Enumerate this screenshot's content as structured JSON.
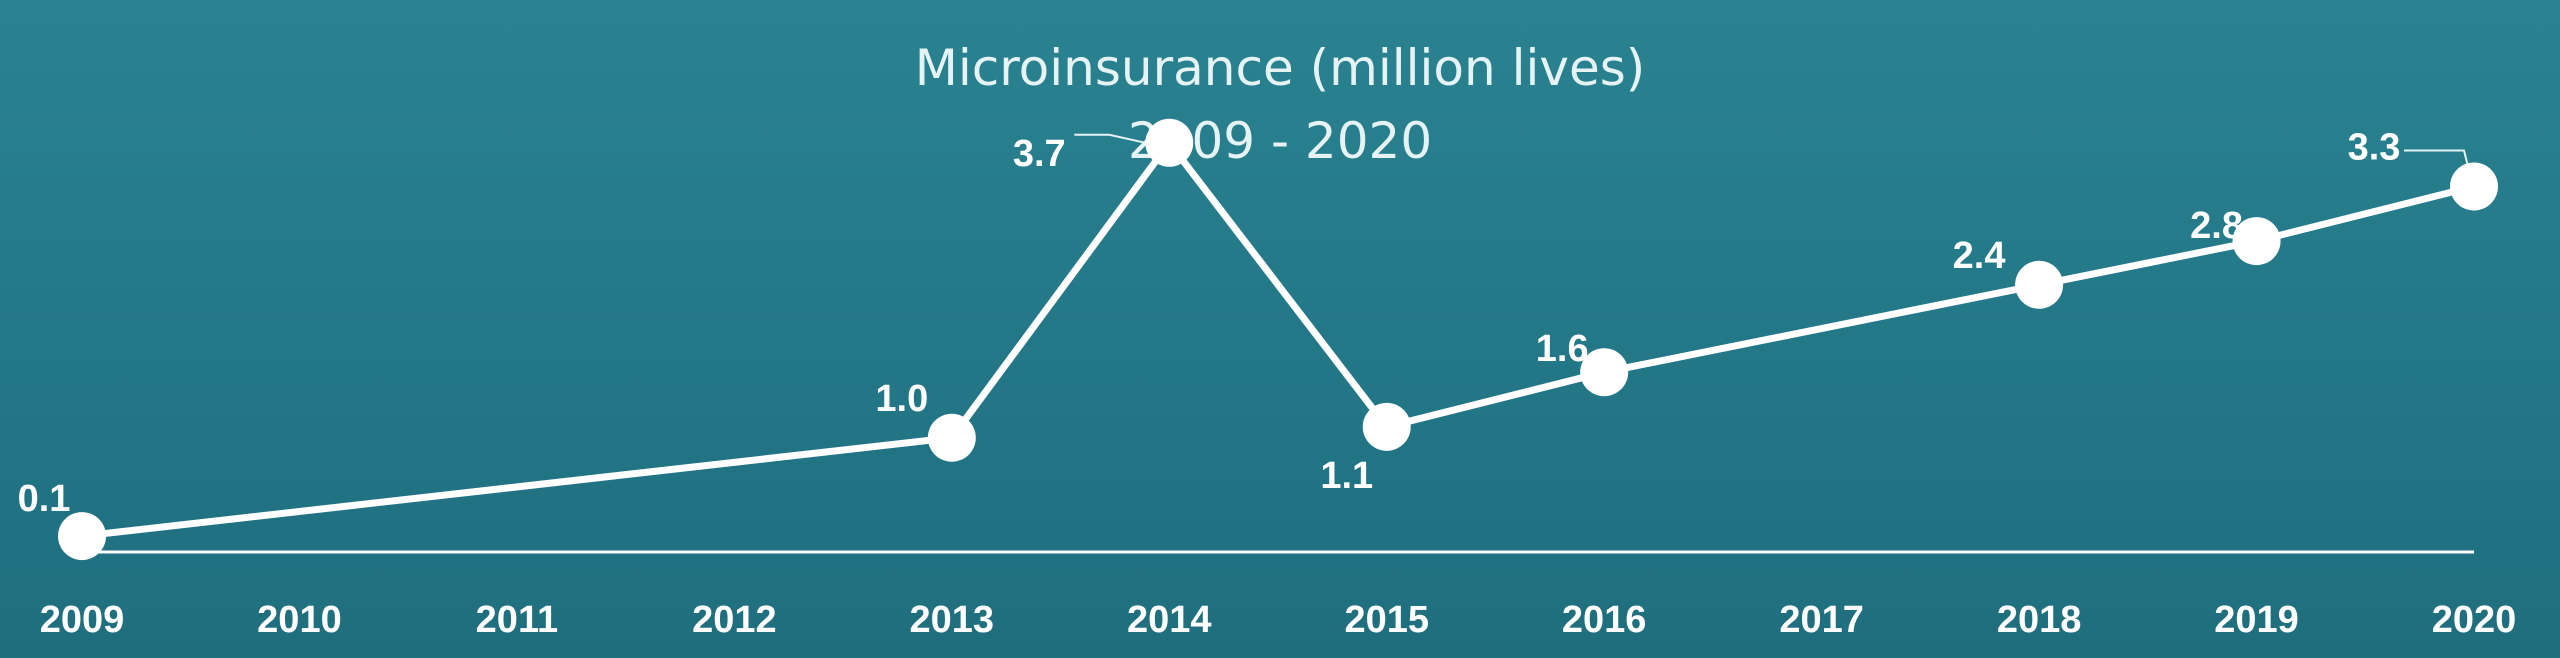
{
  "chart_data": {
    "type": "line",
    "title": "Microinsurance (million lives)",
    "subtitle": "2009 - 2020",
    "categories": [
      "2009",
      "2010",
      "2011",
      "2012",
      "2013",
      "2014",
      "2015",
      "2016",
      "2017",
      "2018",
      "2019",
      "2020"
    ],
    "x": [
      2009,
      2013,
      2014,
      2015,
      2016,
      2018,
      2019,
      2020
    ],
    "values": [
      0.1,
      1.0,
      3.7,
      1.1,
      1.6,
      2.4,
      2.8,
      3.3
    ],
    "data_labels": [
      "0.1",
      "1.0",
      "3.7",
      "1.1",
      "1.6",
      "2.4",
      "2.8",
      "3.3"
    ],
    "ylim": [
      0,
      4
    ],
    "grid": false,
    "legend": "none",
    "colors": {
      "background": "#227686",
      "line": "#ffffff",
      "marker": "#ffffff",
      "text": "#ffffff"
    }
  }
}
